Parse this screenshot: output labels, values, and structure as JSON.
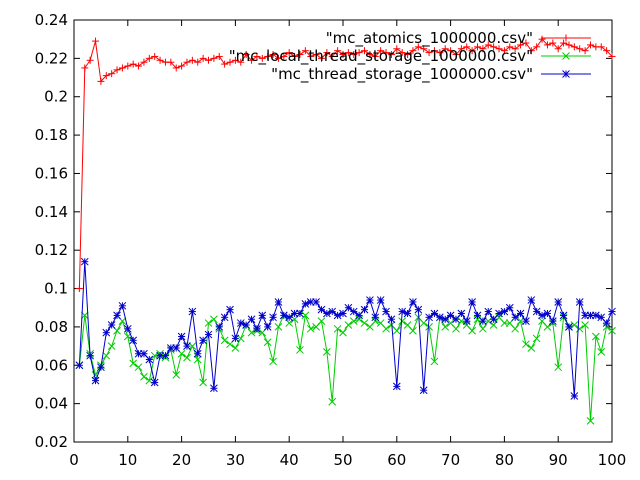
{
  "chart_data": {
    "type": "line",
    "title": "",
    "xlabel": "",
    "ylabel": "",
    "xlim": [
      0,
      100
    ],
    "ylim": [
      0.02,
      0.24
    ],
    "x_ticks": [
      0,
      10,
      20,
      30,
      40,
      50,
      60,
      70,
      80,
      90,
      100
    ],
    "x_tick_labels": [
      "0",
      "10",
      "20",
      "30",
      "40",
      "50",
      "60",
      "70",
      "80",
      "90",
      "100"
    ],
    "y_ticks": [
      0.02,
      0.04,
      0.06,
      0.08,
      0.1,
      0.12,
      0.14,
      0.16,
      0.18,
      0.2,
      0.22,
      0.24
    ],
    "y_tick_labels": [
      "0.02",
      "0.04",
      "0.06",
      "0.08",
      "0.1",
      "0.12",
      "0.14",
      "0.16",
      "0.18",
      "0.2",
      "0.22",
      "0.24"
    ],
    "grid": false,
    "legend_position": "top-right",
    "series": [
      {
        "name": "\"mc_atomics_1000000.csv\"",
        "color": "#ff0000",
        "marker": "plus",
        "x": [
          1,
          2,
          3,
          4,
          5,
          6,
          7,
          8,
          9,
          10,
          11,
          12,
          13,
          14,
          15,
          16,
          17,
          18,
          19,
          20,
          21,
          22,
          23,
          24,
          25,
          26,
          27,
          28,
          29,
          30,
          31,
          32,
          33,
          34,
          35,
          36,
          37,
          38,
          39,
          40,
          41,
          42,
          43,
          44,
          45,
          46,
          47,
          48,
          49,
          50,
          51,
          52,
          53,
          54,
          55,
          56,
          57,
          58,
          59,
          60,
          61,
          62,
          63,
          64,
          65,
          66,
          67,
          68,
          69,
          70,
          71,
          72,
          73,
          74,
          75,
          76,
          77,
          78,
          79,
          80,
          81,
          82,
          83,
          84,
          85,
          86,
          87,
          88,
          89,
          90,
          91,
          92,
          93,
          94,
          95,
          96,
          97,
          98,
          99,
          100
        ],
        "values": [
          0.1,
          0.215,
          0.219,
          0.229,
          0.208,
          0.211,
          0.212,
          0.214,
          0.215,
          0.216,
          0.217,
          0.216,
          0.218,
          0.22,
          0.221,
          0.219,
          0.218,
          0.218,
          0.215,
          0.216,
          0.218,
          0.219,
          0.218,
          0.22,
          0.219,
          0.22,
          0.221,
          0.217,
          0.218,
          0.219,
          0.218,
          0.222,
          0.219,
          0.221,
          0.22,
          0.221,
          0.222,
          0.22,
          0.221,
          0.223,
          0.221,
          0.222,
          0.224,
          0.221,
          0.222,
          0.22,
          0.223,
          0.221,
          0.224,
          0.222,
          0.223,
          0.222,
          0.223,
          0.224,
          0.222,
          0.221,
          0.224,
          0.223,
          0.222,
          0.225,
          0.223,
          0.222,
          0.224,
          0.226,
          0.225,
          0.223,
          0.224,
          0.223,
          0.225,
          0.224,
          0.222,
          0.225,
          0.226,
          0.224,
          0.226,
          0.225,
          0.227,
          0.226,
          0.225,
          0.224,
          0.226,
          0.225,
          0.227,
          0.228,
          0.224,
          0.226,
          0.23,
          0.227,
          0.228,
          0.225,
          0.228,
          0.227,
          0.226,
          0.225,
          0.224,
          0.227,
          0.226,
          0.226,
          0.224,
          0.221
        ]
      },
      {
        "name": "\"mc_local_thread_storage_1000000.csv\"",
        "color": "#00cc00",
        "marker": "cross",
        "x": [
          1,
          2,
          3,
          4,
          5,
          6,
          7,
          8,
          9,
          10,
          11,
          12,
          13,
          14,
          15,
          16,
          17,
          18,
          19,
          20,
          21,
          22,
          23,
          24,
          25,
          26,
          27,
          28,
          29,
          30,
          31,
          32,
          33,
          34,
          35,
          36,
          37,
          38,
          39,
          40,
          41,
          42,
          43,
          44,
          45,
          46,
          47,
          48,
          49,
          50,
          51,
          52,
          53,
          54,
          55,
          56,
          57,
          58,
          59,
          60,
          61,
          62,
          63,
          64,
          65,
          66,
          67,
          68,
          69,
          70,
          71,
          72,
          73,
          74,
          75,
          76,
          77,
          78,
          79,
          80,
          81,
          82,
          83,
          84,
          85,
          86,
          87,
          88,
          89,
          90,
          91,
          92,
          93,
          94,
          95,
          96,
          97,
          98,
          99,
          100
        ],
        "values": [
          0.06,
          0.086,
          0.066,
          0.055,
          0.06,
          0.065,
          0.07,
          0.078,
          0.083,
          0.075,
          0.061,
          0.059,
          0.054,
          0.052,
          0.065,
          0.066,
          0.064,
          0.068,
          0.055,
          0.066,
          0.064,
          0.07,
          0.063,
          0.051,
          0.082,
          0.084,
          0.079,
          0.073,
          0.071,
          0.069,
          0.074,
          0.081,
          0.077,
          0.078,
          0.077,
          0.072,
          0.062,
          0.08,
          0.086,
          0.082,
          0.084,
          0.068,
          0.086,
          0.079,
          0.08,
          0.083,
          0.067,
          0.041,
          0.079,
          0.077,
          0.081,
          0.083,
          0.084,
          0.082,
          0.08,
          0.083,
          0.082,
          0.079,
          0.081,
          0.078,
          0.083,
          0.081,
          0.078,
          0.085,
          0.082,
          0.08,
          0.062,
          0.085,
          0.08,
          0.082,
          0.079,
          0.083,
          0.081,
          0.078,
          0.084,
          0.079,
          0.083,
          0.081,
          0.085,
          0.082,
          0.082,
          0.079,
          0.083,
          0.071,
          0.069,
          0.074,
          0.083,
          0.08,
          0.082,
          0.059,
          0.085,
          0.08,
          0.081,
          0.079,
          0.081,
          0.031,
          0.075,
          0.067,
          0.08,
          0.078
        ]
      },
      {
        "name": "\"mc_thread_storage_1000000.csv\"",
        "color": "#0000cc",
        "marker": "star",
        "x": [
          1,
          2,
          3,
          4,
          5,
          6,
          7,
          8,
          9,
          10,
          11,
          12,
          13,
          14,
          15,
          16,
          17,
          18,
          19,
          20,
          21,
          22,
          23,
          24,
          25,
          26,
          27,
          28,
          29,
          30,
          31,
          32,
          33,
          34,
          35,
          36,
          37,
          38,
          39,
          40,
          41,
          42,
          43,
          44,
          45,
          46,
          47,
          48,
          49,
          50,
          51,
          52,
          53,
          54,
          55,
          56,
          57,
          58,
          59,
          60,
          61,
          62,
          63,
          64,
          65,
          66,
          67,
          68,
          69,
          70,
          71,
          72,
          73,
          74,
          75,
          76,
          77,
          78,
          79,
          80,
          81,
          82,
          83,
          84,
          85,
          86,
          87,
          88,
          89,
          90,
          91,
          92,
          93,
          94,
          95,
          96,
          97,
          98,
          99,
          100
        ],
        "values": [
          0.06,
          0.114,
          0.065,
          0.052,
          0.059,
          0.077,
          0.081,
          0.086,
          0.091,
          0.079,
          0.073,
          0.066,
          0.066,
          0.063,
          0.051,
          0.065,
          0.065,
          0.069,
          0.069,
          0.075,
          0.07,
          0.088,
          0.066,
          0.073,
          0.076,
          0.048,
          0.08,
          0.085,
          0.089,
          0.074,
          0.082,
          0.081,
          0.084,
          0.079,
          0.086,
          0.08,
          0.085,
          0.093,
          0.086,
          0.085,
          0.087,
          0.087,
          0.092,
          0.093,
          0.093,
          0.089,
          0.087,
          0.088,
          0.086,
          0.087,
          0.09,
          0.088,
          0.086,
          0.089,
          0.094,
          0.085,
          0.094,
          0.088,
          0.084,
          0.049,
          0.088,
          0.087,
          0.093,
          0.089,
          0.047,
          0.085,
          0.087,
          0.085,
          0.084,
          0.086,
          0.084,
          0.087,
          0.083,
          0.093,
          0.086,
          0.083,
          0.088,
          0.084,
          0.087,
          0.088,
          0.09,
          0.085,
          0.087,
          0.083,
          0.094,
          0.088,
          0.086,
          0.087,
          0.083,
          0.093,
          0.086,
          0.08,
          0.044,
          0.093,
          0.086,
          0.086,
          0.086,
          0.085,
          0.082,
          0.088
        ]
      }
    ]
  }
}
